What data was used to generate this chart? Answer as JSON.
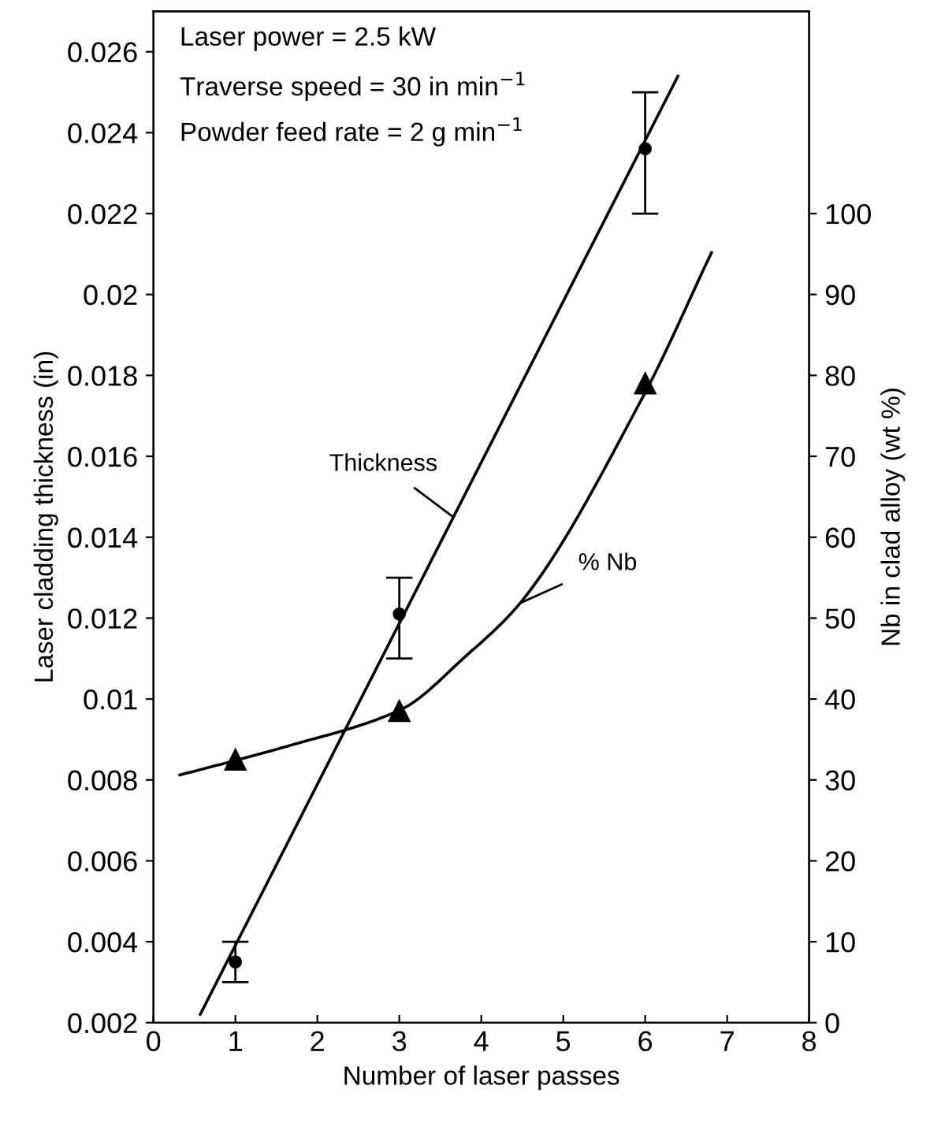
{
  "chart_data": {
    "type": "scatter",
    "xlabel": "Number of laser passes",
    "ylabel": "Laser cladding thickness (in)",
    "y2label": "Nb in clad alloy (wt %)",
    "annotations": [
      "Laser power = 2.5 kW",
      "Traverse speed = 30 in min$^{−1}$",
      "Powder feed rate = 2 g min$^{−1}$"
    ],
    "series": [
      {
        "name": "Thickness",
        "type": "line",
        "color": "#000000",
        "x": [
          0.57,
          6.4
        ],
        "values": [
          0.0022,
          0.0254
        ],
        "marker": "none",
        "line_style": "solid"
      },
      {
        "type": "scatter",
        "color": "#000000",
        "x": [
          1,
          3,
          6
        ],
        "values": [
          0.0035,
          0.0121,
          0.0236
        ],
        "errors": [
          [
            0.003,
            0.004
          ],
          [
            0.011,
            0.013
          ],
          [
            0.022,
            0.025
          ]
        ],
        "marker": "circle"
      },
      {
        "name": "% Nb",
        "type": "line",
        "axis": "y2",
        "color": "#000000",
        "x": [
          0.32,
          1.61,
          3.02,
          3.8,
          4.51,
          5.98,
          6.81
        ],
        "values": [
          30.6,
          34.1,
          38.7,
          45.2,
          52.3,
          77.5,
          95.2
        ],
        "marker": "none",
        "line_style": "solid"
      },
      {
        "type": "scatter",
        "axis": "y2",
        "color": "#000000",
        "x": [
          1,
          3,
          6
        ],
        "values": [
          32.5,
          38.5,
          79
        ],
        "marker": "triangle"
      }
    ],
    "xlim": [
      0,
      8
    ],
    "xticks": [
      0,
      1,
      2,
      3,
      4,
      5,
      6,
      7,
      8
    ],
    "ylim": [
      0.002,
      0.027
    ],
    "yticks": [
      0.002,
      0.004,
      0.006,
      0.008,
      0.01,
      0.012,
      0.014,
      0.016,
      0.018,
      0.02,
      0.022,
      0.024,
      0.026
    ],
    "y2lim": [
      0,
      125
    ],
    "y2ticks": [
      0,
      10,
      20,
      30,
      40,
      50,
      60,
      70,
      80,
      90,
      100
    ],
    "grid": false,
    "legend": false
  }
}
